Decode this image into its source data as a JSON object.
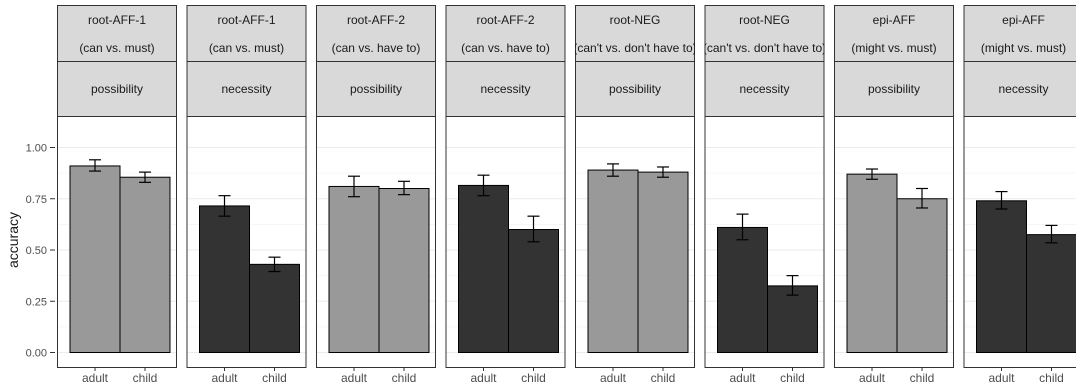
{
  "chart_data": {
    "type": "bar",
    "ylabel": "accuracy",
    "ylim": [
      0,
      1.15
    ],
    "y_ticks": [
      0.0,
      0.25,
      0.5,
      0.75,
      1.0
    ],
    "y_tick_labels": [
      "0.00",
      "0.25",
      "0.50",
      "0.75",
      "1.00"
    ],
    "categories": [
      "adult",
      "child"
    ],
    "grid": true,
    "colors": {
      "possibility": "#999999",
      "necessity": "#333333"
    },
    "panels": [
      {
        "strip_line1": "root-AFF-1",
        "strip_line2": "(can vs. must)",
        "strip_modality": "possibility",
        "values": [
          0.91,
          0.855
        ],
        "errors": [
          [
            0.885,
            0.94
          ],
          [
            0.83,
            0.88
          ]
        ]
      },
      {
        "strip_line1": "root-AFF-1",
        "strip_line2": "(can vs. must)",
        "strip_modality": "necessity",
        "values": [
          0.715,
          0.43
        ],
        "errors": [
          [
            0.665,
            0.765
          ],
          [
            0.395,
            0.465
          ]
        ]
      },
      {
        "strip_line1": "root-AFF-2",
        "strip_line2": "(can vs. have to)",
        "strip_modality": "possibility",
        "values": [
          0.81,
          0.8
        ],
        "errors": [
          [
            0.76,
            0.86
          ],
          [
            0.77,
            0.835
          ]
        ]
      },
      {
        "strip_line1": "root-AFF-2",
        "strip_line2": "(can vs. have to)",
        "strip_modality": "necessity",
        "values": [
          0.815,
          0.6
        ],
        "errors": [
          [
            0.765,
            0.865
          ],
          [
            0.54,
            0.665
          ]
        ]
      },
      {
        "strip_line1": "root-NEG",
        "strip_line2": "(can't vs. don't have to)",
        "strip_modality": "possibility",
        "values": [
          0.89,
          0.88
        ],
        "errors": [
          [
            0.86,
            0.92
          ],
          [
            0.855,
            0.905
          ]
        ]
      },
      {
        "strip_line1": "root-NEG",
        "strip_line2": "(can't vs. don't have to)",
        "strip_modality": "necessity",
        "values": [
          0.61,
          0.325
        ],
        "errors": [
          [
            0.55,
            0.675
          ],
          [
            0.28,
            0.375
          ]
        ]
      },
      {
        "strip_line1": "epi-AFF",
        "strip_line2": "(might vs. must)",
        "strip_modality": "possibility",
        "values": [
          0.87,
          0.75
        ],
        "errors": [
          [
            0.845,
            0.895
          ],
          [
            0.705,
            0.8
          ]
        ]
      },
      {
        "strip_line1": "epi-AFF",
        "strip_line2": "(might vs. must)",
        "strip_modality": "necessity",
        "values": [
          0.74,
          0.575
        ],
        "errors": [
          [
            0.7,
            0.785
          ],
          [
            0.535,
            0.62
          ]
        ]
      }
    ]
  }
}
